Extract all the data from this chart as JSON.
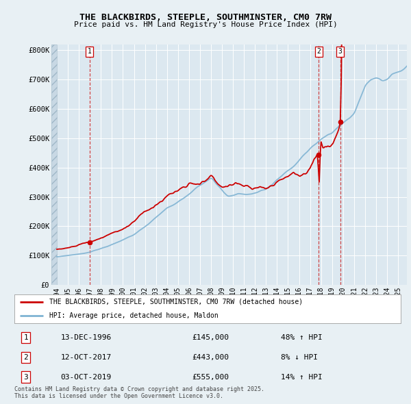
{
  "title": "THE BLACKBIRDS, STEEPLE, SOUTHMINSTER, CM0 7RW",
  "subtitle": "Price paid vs. HM Land Registry's House Price Index (HPI)",
  "background_color": "#e8f0f4",
  "plot_bg_color": "#dce8f0",
  "legend_label_red": "THE BLACKBIRDS, STEEPLE, SOUTHMINSTER, CM0 7RW (detached house)",
  "legend_label_blue": "HPI: Average price, detached house, Maldon",
  "footer": "Contains HM Land Registry data © Crown copyright and database right 2025.\nThis data is licensed under the Open Government Licence v3.0.",
  "sales": [
    {
      "id": 1,
      "date_label": "13-DEC-1996",
      "year": 1996.96,
      "price": 145000,
      "hpi_rel": "48% ↑ HPI"
    },
    {
      "id": 2,
      "date_label": "12-OCT-2017",
      "year": 2017.78,
      "price": 443000,
      "hpi_rel": "8% ↓ HPI"
    },
    {
      "id": 3,
      "date_label": "03-OCT-2019",
      "year": 2019.75,
      "price": 555000,
      "hpi_rel": "14% ↑ HPI"
    }
  ],
  "ylim": [
    0,
    820000
  ],
  "xlim": [
    1993.5,
    2025.8
  ],
  "yticks": [
    0,
    100000,
    200000,
    300000,
    400000,
    500000,
    600000,
    700000,
    800000
  ],
  "ytick_labels": [
    "£0",
    "£100K",
    "£200K",
    "£300K",
    "£400K",
    "£500K",
    "£600K",
    "£700K",
    "£800K"
  ],
  "xticks": [
    1994,
    1995,
    1996,
    1997,
    1998,
    1999,
    2000,
    2001,
    2002,
    2003,
    2004,
    2005,
    2006,
    2007,
    2008,
    2009,
    2010,
    2011,
    2012,
    2013,
    2014,
    2015,
    2016,
    2017,
    2018,
    2019,
    2020,
    2021,
    2022,
    2023,
    2024,
    2025
  ],
  "red_color": "#cc0000",
  "blue_color": "#7fb3d3",
  "dashed_red": "#cc3333"
}
